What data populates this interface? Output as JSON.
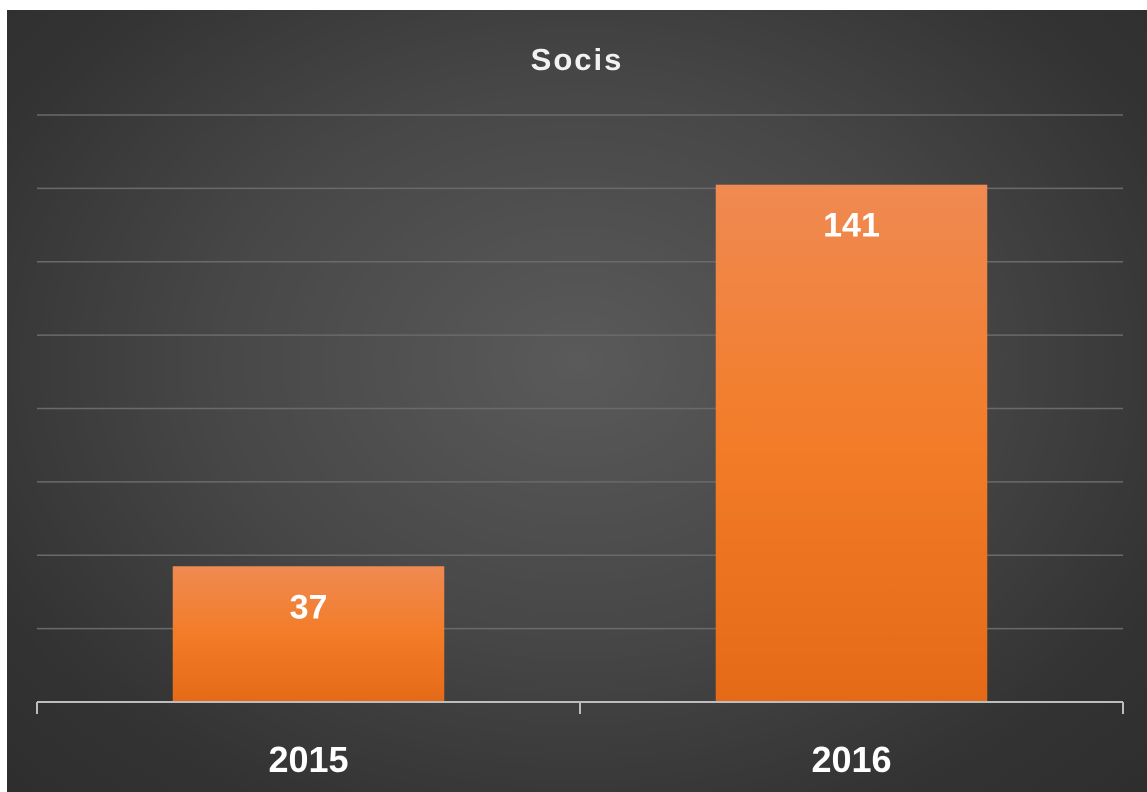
{
  "chart_data": {
    "type": "bar",
    "title": "Socis",
    "categories": [
      "2015",
      "2016"
    ],
    "values": [
      37,
      141
    ],
    "xlabel": "",
    "ylabel": "",
    "ylim": [
      0,
      160
    ],
    "grid": true,
    "data_labels": true,
    "legend": "none",
    "colors": {
      "bar_top": "#f08a52",
      "bar_mid": "#f27c28",
      "bar_bottom": "#e56a18",
      "gridline": "#6a6a6a",
      "axis": "#bdbdbd"
    }
  }
}
